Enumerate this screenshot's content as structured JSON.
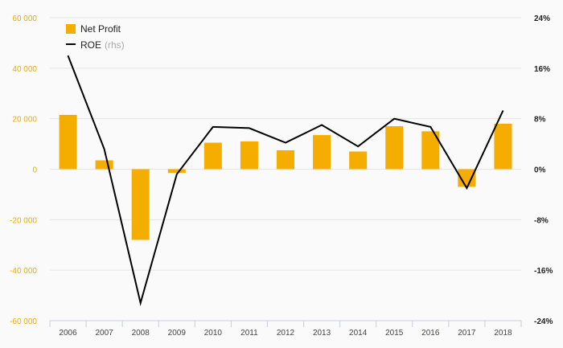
{
  "chart_data": {
    "type": "bar",
    "categories": [
      "2006",
      "2007",
      "2008",
      "2009",
      "2010",
      "2011",
      "2012",
      "2013",
      "2014",
      "2015",
      "2016",
      "2017",
      "2018"
    ],
    "series": [
      {
        "name": "Net Profit",
        "kind": "bar",
        "axis": "left",
        "color": "#f5ad00",
        "values": [
          21500,
          3500,
          -28000,
          -1500,
          10500,
          11000,
          7500,
          13500,
          7000,
          17000,
          15000,
          -7000,
          18000
        ]
      },
      {
        "name": "ROE",
        "note": "(rhs)",
        "kind": "line",
        "axis": "right",
        "color": "#000000",
        "values": [
          18,
          3.2,
          -21.2,
          -0.8,
          6.7,
          6.5,
          4.2,
          7,
          3.6,
          8,
          6.7,
          -3,
          9.3
        ]
      }
    ],
    "y_left": {
      "min": -60000,
      "max": 60000,
      "ticks": [
        60000,
        40000,
        20000,
        0,
        -20000,
        -40000,
        -60000
      ],
      "tick_labels": [
        "60 000",
        "40 000",
        "20 000",
        "0",
        "-20 000",
        "-40 000",
        "-60 000"
      ],
      "color": "#f5a800"
    },
    "y_right": {
      "min": -24,
      "max": 24,
      "ticks": [
        24,
        16,
        8,
        0,
        -8,
        -16,
        -24
      ],
      "tick_labels": [
        "24%",
        "16%",
        "8%",
        "0%",
        "-8%",
        "-16%",
        "-24%"
      ]
    },
    "grid": "horizontal",
    "legend_position": "top-left"
  }
}
